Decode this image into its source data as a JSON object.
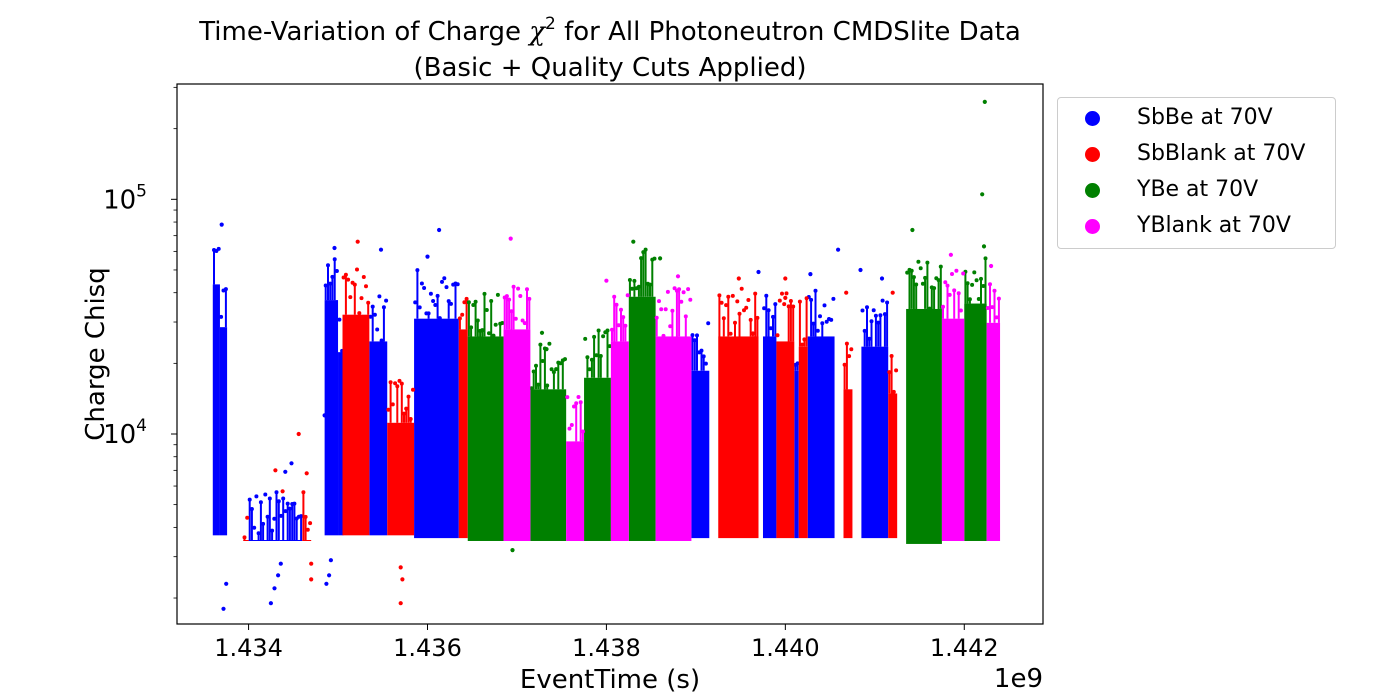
{
  "chart_data": {
    "type": "scatter",
    "title_line1_pre": "Time-Variation of Charge ",
    "title_chi": "χ",
    "title_sup": "2",
    "title_line1_post": " for All Photoneutron CMDSlite Data",
    "title_line2": "(Basic + Quality Cuts Applied)",
    "xlabel": "EventTime (s)",
    "ylabel": "Charge Chisq",
    "x_offset_label": "1e9",
    "x_scale_factor": 1000000000,
    "xlim": [
      1433200000,
      1442880000
    ],
    "ylim": [
      1550,
      310000
    ],
    "yscale": "log",
    "grid": false,
    "legend_position": "outside-right",
    "x_ticks": [
      {
        "value": 1434000000,
        "label": "1.434"
      },
      {
        "value": 1436000000,
        "label": "1.436"
      },
      {
        "value": 1438000000,
        "label": "1.438"
      },
      {
        "value": 1440000000,
        "label": "1.440"
      },
      {
        "value": 1442000000,
        "label": "1.442"
      }
    ],
    "y_ticks": [
      {
        "value": 10000,
        "base": "10",
        "exp": "4"
      },
      {
        "value": 100000,
        "base": "10",
        "exp": "5"
      }
    ],
    "series": [
      {
        "name": "SbBe at 70V",
        "color": "#0000ff",
        "bands": [
          {
            "x0": 1433600000,
            "x1": 1433680000,
            "min": 3700,
            "max": 70000
          },
          {
            "x0": 1433680000,
            "x1": 1433760000,
            "min": 3700,
            "max": 46000
          },
          {
            "x0": 1434000000,
            "x1": 1434150000,
            "min": 3700,
            "max": 5700
          },
          {
            "x0": 1434150000,
            "x1": 1434350000,
            "min": 3700,
            "max": 5700
          },
          {
            "x0": 1434350000,
            "x1": 1434600000,
            "min": 3700,
            "max": 5700
          },
          {
            "x0": 1434850000,
            "x1": 1435000000,
            "min": 3700,
            "max": 60000
          },
          {
            "x0": 1435000000,
            "x1": 1435060000,
            "min": 3700,
            "max": 36000
          },
          {
            "x0": 1435350000,
            "x1": 1435550000,
            "min": 3700,
            "max": 40000
          },
          {
            "x0": 1435850000,
            "x1": 1436350000,
            "min": 3600,
            "max": 50000
          },
          {
            "x0": 1438950000,
            "x1": 1439150000,
            "min": 3600,
            "max": 30000
          },
          {
            "x0": 1439750000,
            "x1": 1439900000,
            "min": 3600,
            "max": 42000
          },
          {
            "x0": 1440100000,
            "x1": 1440150000,
            "min": 3600,
            "max": 30000
          },
          {
            "x0": 1440250000,
            "x1": 1440550000,
            "min": 3600,
            "max": 42000
          },
          {
            "x0": 1440850000,
            "x1": 1441150000,
            "min": 3600,
            "max": 38000
          }
        ],
        "outliers": [
          {
            "x": 1433720000,
            "y": 1800
          },
          {
            "x": 1433750000,
            "y": 2300
          },
          {
            "x": 1433700000,
            "y": 78000
          },
          {
            "x": 1434250000,
            "y": 1900
          },
          {
            "x": 1434290000,
            "y": 2200
          },
          {
            "x": 1434330000,
            "y": 2500
          },
          {
            "x": 1434360000,
            "y": 2800
          },
          {
            "x": 1434410000,
            "y": 6900
          },
          {
            "x": 1434480000,
            "y": 7500
          },
          {
            "x": 1434850000,
            "y": 12000
          },
          {
            "x": 1434870000,
            "y": 2300
          },
          {
            "x": 1434900000,
            "y": 2500
          },
          {
            "x": 1434920000,
            "y": 2900
          },
          {
            "x": 1434960000,
            "y": 62000
          },
          {
            "x": 1435480000,
            "y": 61000
          },
          {
            "x": 1436000000,
            "y": 57000
          },
          {
            "x": 1436130000,
            "y": 74000
          },
          {
            "x": 1439700000,
            "y": 49000
          },
          {
            "x": 1440280000,
            "y": 48000
          },
          {
            "x": 1440590000,
            "y": 61000
          },
          {
            "x": 1440840000,
            "y": 50000
          },
          {
            "x": 1441080000,
            "y": 46000
          }
        ]
      },
      {
        "name": "SbBlank at 70V",
        "color": "#ff0000",
        "bands": [
          {
            "x0": 1433940000,
            "x1": 1434000000,
            "min": 3700,
            "max": 5700
          },
          {
            "x0": 1434600000,
            "x1": 1434700000,
            "min": 3700,
            "max": 5700
          },
          {
            "x0": 1435050000,
            "x1": 1435350000,
            "min": 3700,
            "max": 52000
          },
          {
            "x0": 1435550000,
            "x1": 1435850000,
            "min": 3700,
            "max": 18000
          },
          {
            "x0": 1436350000,
            "x1": 1436450000,
            "min": 3600,
            "max": 45000
          },
          {
            "x0": 1439250000,
            "x1": 1439700000,
            "min": 3600,
            "max": 42000
          },
          {
            "x0": 1439900000,
            "x1": 1440100000,
            "min": 3600,
            "max": 40000
          },
          {
            "x0": 1440150000,
            "x1": 1440250000,
            "min": 3600,
            "max": 38000
          },
          {
            "x0": 1440650000,
            "x1": 1440750000,
            "min": 3600,
            "max": 25000
          },
          {
            "x0": 1441150000,
            "x1": 1441250000,
            "min": 3600,
            "max": 24000
          }
        ],
        "outliers": [
          {
            "x": 1434300000,
            "y": 7000
          },
          {
            "x": 1434380000,
            "y": 5700
          },
          {
            "x": 1434560000,
            "y": 10000
          },
          {
            "x": 1434650000,
            "y": 6800
          },
          {
            "x": 1434700000,
            "y": 2400
          },
          {
            "x": 1434700000,
            "y": 2800
          },
          {
            "x": 1435220000,
            "y": 66000
          },
          {
            "x": 1435700000,
            "y": 1900
          },
          {
            "x": 1435720000,
            "y": 2400
          },
          {
            "x": 1435700000,
            "y": 2700
          },
          {
            "x": 1439480000,
            "y": 46000
          },
          {
            "x": 1440000000,
            "y": 38000
          },
          {
            "x": 1440000000,
            "y": 46000
          },
          {
            "x": 1440680000,
            "y": 40000
          },
          {
            "x": 1441200000,
            "y": 40000
          }
        ]
      },
      {
        "name": "YBe at 70V",
        "color": "#008000",
        "bands": [
          {
            "x0": 1436450000,
            "x1": 1436850000,
            "min": 3500,
            "max": 42000
          },
          {
            "x0": 1437150000,
            "x1": 1437550000,
            "min": 3500,
            "max": 25000
          },
          {
            "x0": 1437750000,
            "x1": 1438050000,
            "min": 3500,
            "max": 28000
          },
          {
            "x0": 1438250000,
            "x1": 1438550000,
            "min": 3500,
            "max": 62000
          },
          {
            "x0": 1441350000,
            "x1": 1441750000,
            "min": 3400,
            "max": 55000
          },
          {
            "x0": 1442000000,
            "x1": 1442250000,
            "min": 3500,
            "max": 58000
          }
        ],
        "outliers": [
          {
            "x": 1436950000,
            "y": 3200
          },
          {
            "x": 1437120000,
            "y": 25000
          },
          {
            "x": 1437280000,
            "y": 27000
          },
          {
            "x": 1437330000,
            "y": 23000
          },
          {
            "x": 1438300000,
            "y": 66000
          },
          {
            "x": 1438600000,
            "y": 56000
          },
          {
            "x": 1441420000,
            "y": 74000
          },
          {
            "x": 1442200000,
            "y": 105000
          },
          {
            "x": 1442230000,
            "y": 260000
          },
          {
            "x": 1442220000,
            "y": 63000
          }
        ]
      },
      {
        "name": "YBlank at 70V",
        "color": "#ff00ff",
        "bands": [
          {
            "x0": 1436850000,
            "x1": 1437150000,
            "min": 3500,
            "max": 45000
          },
          {
            "x0": 1437550000,
            "x1": 1437750000,
            "min": 3500,
            "max": 15000
          },
          {
            "x0": 1438050000,
            "x1": 1438250000,
            "min": 3500,
            "max": 40000
          },
          {
            "x0": 1438550000,
            "x1": 1438950000,
            "min": 3500,
            "max": 42000
          },
          {
            "x0": 1441750000,
            "x1": 1442000000,
            "min": 3500,
            "max": 50000
          },
          {
            "x0": 1442250000,
            "x1": 1442400000,
            "min": 3500,
            "max": 48000
          }
        ],
        "outliers": [
          {
            "x": 1436930000,
            "y": 68000
          },
          {
            "x": 1438000000,
            "y": 45000
          },
          {
            "x": 1438800000,
            "y": 47000
          },
          {
            "x": 1441850000,
            "y": 58000
          },
          {
            "x": 1442300000,
            "y": 52000
          }
        ]
      }
    ]
  }
}
